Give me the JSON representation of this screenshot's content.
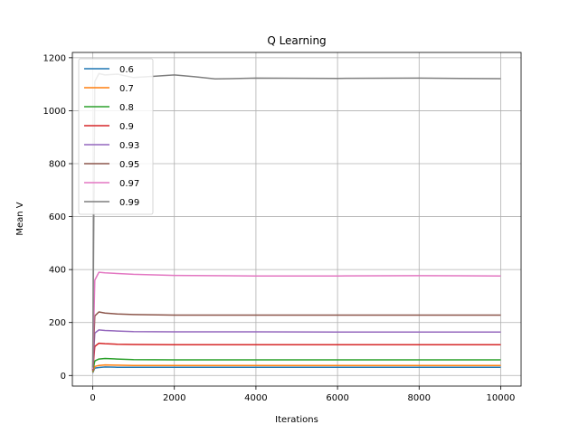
{
  "chart_data": {
    "type": "line",
    "title": "Q Learning",
    "xlabel": "Iterations",
    "ylabel": "Mean V",
    "xlim": [
      -500,
      10500
    ],
    "ylim": [
      -40,
      1220
    ],
    "xticks": [
      0,
      2000,
      4000,
      6000,
      8000,
      10000
    ],
    "xtick_labels": [
      "0",
      "2000",
      "4000",
      "6000",
      "8000",
      "10000"
    ],
    "yticks": [
      0,
      200,
      400,
      600,
      800,
      1000,
      1200
    ],
    "ytick_labels": [
      "0",
      "200",
      "400",
      "600",
      "800",
      "1000",
      "1200"
    ],
    "grid": true,
    "legend_position": "top-left",
    "series": [
      {
        "name": "0.6",
        "color": "#1f77b4",
        "x": [
          0,
          50,
          150,
          300,
          600,
          1000,
          2000,
          4000,
          6000,
          8000,
          10000
        ],
        "values": [
          10,
          28,
          30,
          32,
          31,
          31,
          31,
          31,
          31,
          31,
          31
        ]
      },
      {
        "name": "0.7",
        "color": "#ff7f0e",
        "x": [
          0,
          50,
          150,
          300,
          600,
          1000,
          2000,
          4000,
          6000,
          8000,
          10000
        ],
        "values": [
          12,
          34,
          38,
          40,
          39,
          38,
          38,
          38,
          38,
          38,
          38
        ]
      },
      {
        "name": "0.8",
        "color": "#2ca02c",
        "x": [
          0,
          50,
          150,
          300,
          600,
          1000,
          2000,
          4000,
          6000,
          8000,
          10000
        ],
        "values": [
          15,
          55,
          62,
          64,
          62,
          60,
          59,
          59,
          59,
          59,
          59
        ]
      },
      {
        "name": "0.9",
        "color": "#d62728",
        "x": [
          0,
          50,
          150,
          300,
          600,
          1000,
          2000,
          4000,
          6000,
          8000,
          10000
        ],
        "values": [
          18,
          110,
          122,
          120,
          118,
          117,
          116,
          116,
          116,
          116,
          116
        ]
      },
      {
        "name": "0.93",
        "color": "#9467bd",
        "x": [
          0,
          50,
          150,
          300,
          600,
          1000,
          2000,
          4000,
          6000,
          8000,
          10000
        ],
        "values": [
          20,
          160,
          172,
          170,
          168,
          166,
          165,
          165,
          164,
          164,
          164
        ]
      },
      {
        "name": "0.95",
        "color": "#8c564b",
        "x": [
          0,
          50,
          150,
          300,
          600,
          1000,
          2000,
          4000,
          6000,
          8000,
          10000
        ],
        "values": [
          22,
          225,
          240,
          236,
          232,
          230,
          228,
          228,
          228,
          228,
          228
        ]
      },
      {
        "name": "0.97",
        "color": "#e377c2",
        "x": [
          0,
          50,
          150,
          300,
          600,
          1000,
          2000,
          4000,
          6000,
          8000,
          10000
        ],
        "values": [
          25,
          360,
          390,
          388,
          385,
          382,
          378,
          376,
          376,
          377,
          376
        ]
      },
      {
        "name": "0.99",
        "color": "#7f7f7f",
        "x": [
          0,
          50,
          150,
          300,
          600,
          1000,
          1500,
          2000,
          2500,
          3000,
          4000,
          6000,
          8000,
          10000
        ],
        "values": [
          30,
          1110,
          1140,
          1135,
          1138,
          1125,
          1130,
          1135,
          1128,
          1120,
          1123,
          1122,
          1123,
          1121
        ]
      }
    ]
  }
}
